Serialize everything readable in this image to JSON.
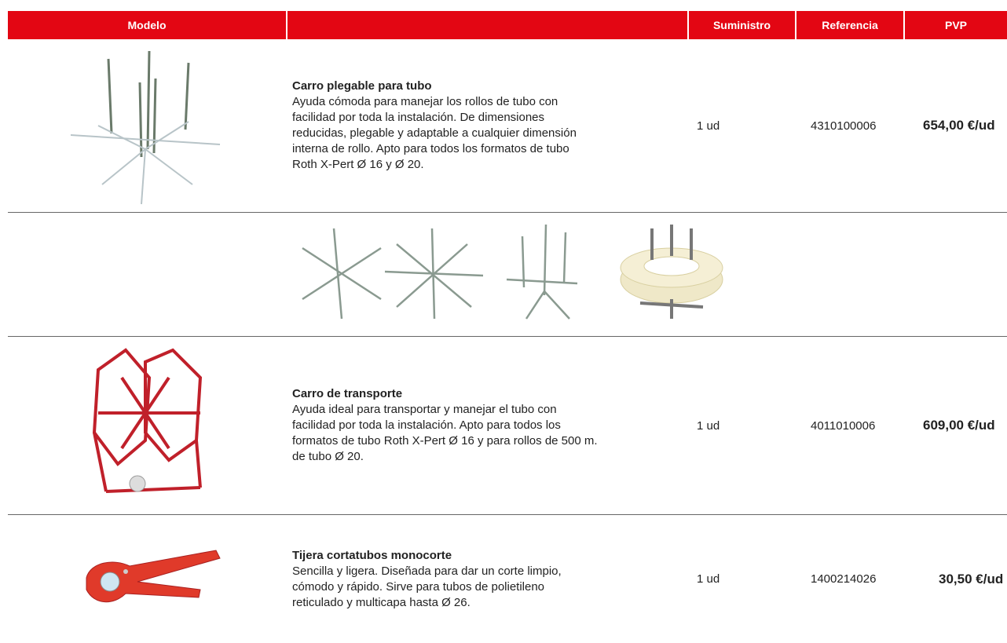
{
  "table": {
    "header": [
      "Modelo",
      "",
      "Suministro",
      "Referencia",
      "PVP"
    ],
    "rows": [
      {
        "title": "Carro plegable para tubo",
        "description": [
          "Ayuda cómoda para manejar los rollos de tubo con",
          "facilidad por toda la instalación. De dimensiones",
          "reducidas, plegable y adaptable a cualquier dimensión",
          "interna de rollo. Apto para todos los formatos de tubo",
          "Roth X-Pert Ø 16 y Ø 20."
        ],
        "supply": "1 ud",
        "reference": "4310100006",
        "price": "654,00 €/ud"
      },
      {
        "title": "Carro de transporte",
        "description": [
          "Ayuda ideal para transportar y manejar el tubo con",
          "facilidad por toda la instalación. Apto para todos los",
          "formatos de tubo Roth X-Pert Ø 16 y para rollos de 500 m.",
          "de tubo Ø 20."
        ],
        "supply": "1 ud",
        "reference": "4011010006",
        "price": "609,00 €/ud"
      },
      {
        "title": "Tijera cortatubos monocorte",
        "description": [
          "Sencilla y ligera. Diseñada para dar un corte limpio,",
          "cómodo y rápido. Sirve para tubos de polietileno",
          "reticulado y multicapa hasta Ø 26."
        ],
        "supply": "1 ud",
        "reference": "1400214026",
        "price": "30,50 €/ud"
      }
    ]
  }
}
